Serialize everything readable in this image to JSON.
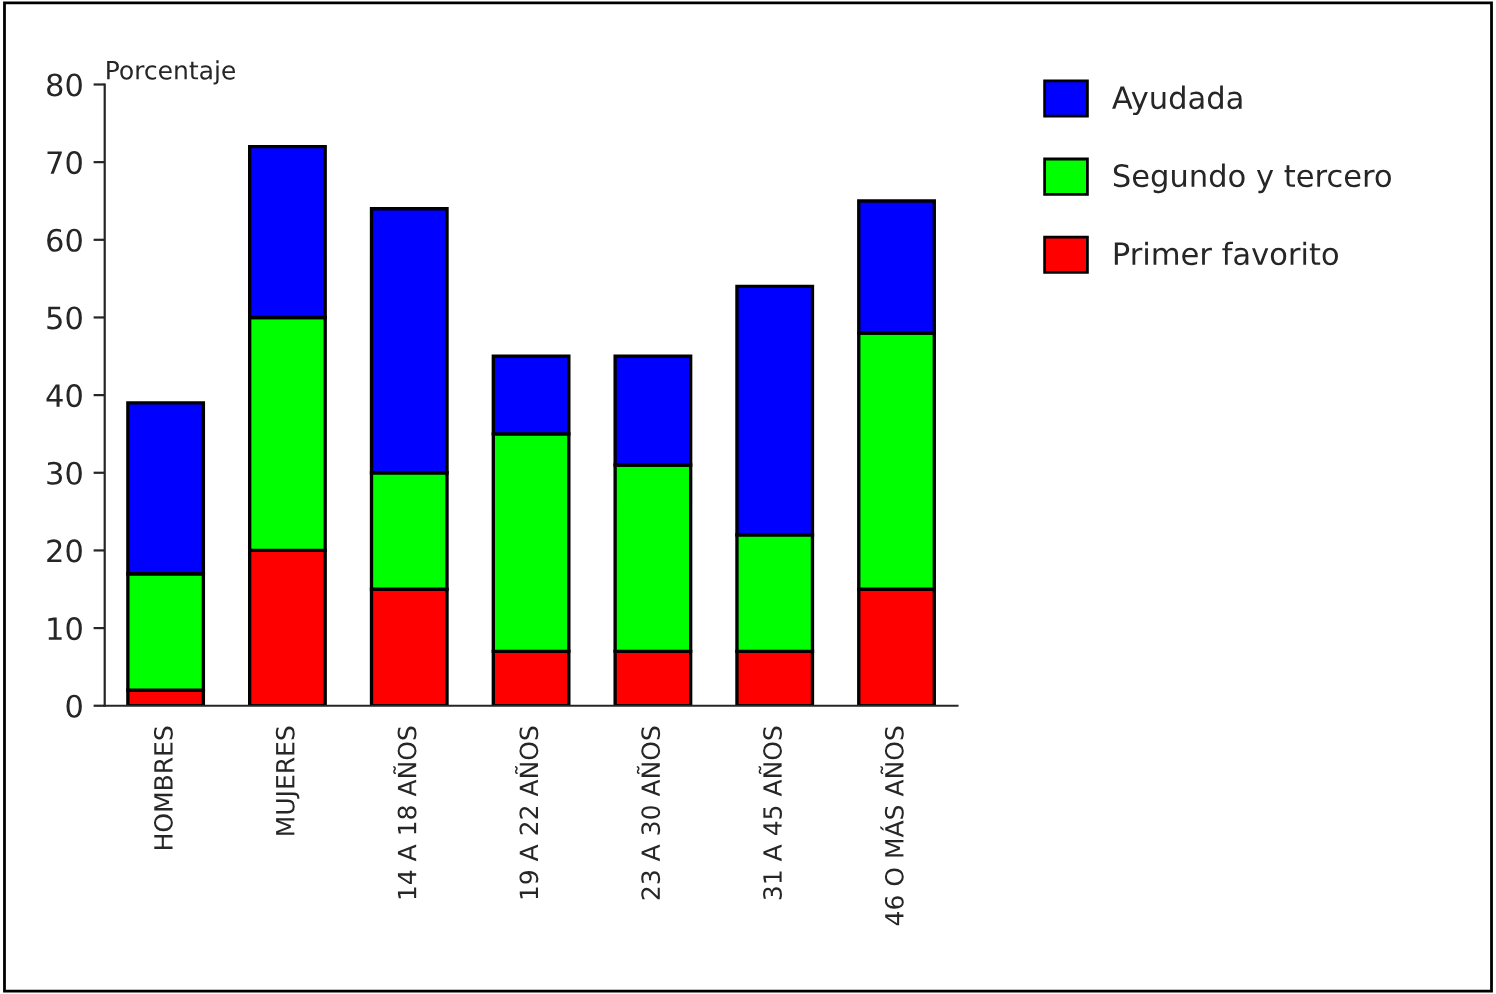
{
  "chart_data": {
    "type": "bar",
    "stacked": true,
    "ylabel": "Porcentaje",
    "categories": [
      "HOMBRES",
      "MUJERES",
      "14 A 18 AÑOS",
      "19 A 22 AÑOS",
      "23 A 30 AÑOS",
      "31 A 45 AÑOS",
      "46 O MÁS AÑOS"
    ],
    "series": [
      {
        "name": "Primer favorito",
        "color": "#ff0000",
        "values": [
          2,
          20,
          15,
          7,
          7,
          7,
          15
        ]
      },
      {
        "name": "Segundo y tercero",
        "color": "#00ff00",
        "values": [
          15,
          30,
          15,
          28,
          24,
          15,
          33
        ]
      },
      {
        "name": "Ayudada",
        "color": "#0000ff",
        "values": [
          22,
          22,
          34,
          10,
          14,
          32,
          17
        ]
      }
    ],
    "ylim": [
      0,
      80
    ],
    "yticks": [
      0,
      10,
      20,
      30,
      40,
      50,
      60,
      70,
      80
    ],
    "grid": false,
    "legend": "top right"
  }
}
